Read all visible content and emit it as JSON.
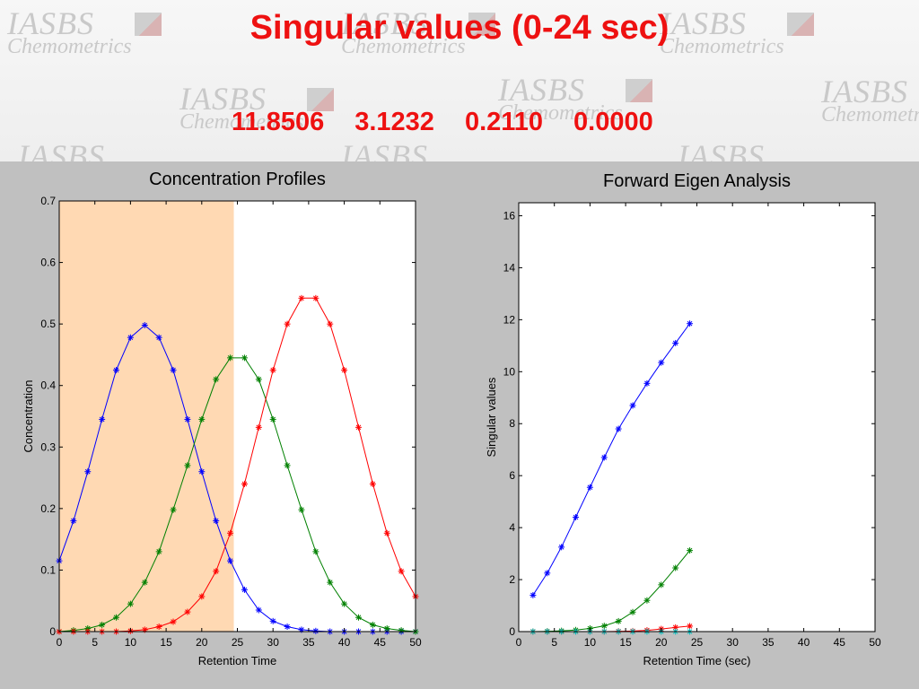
{
  "slide": {
    "title": "Singular values  (0-24 sec)",
    "values": [
      "11.8506",
      "3.1232",
      "0.2110",
      "0.0000"
    ],
    "watermark": {
      "line1": "IASBS",
      "line2": "Chemometrics"
    }
  },
  "chart_data": [
    {
      "type": "line",
      "title": "Concentration Profiles",
      "xlabel": "Retention Time",
      "ylabel": "Concentration",
      "xlim": [
        0,
        50
      ],
      "ylim": [
        0,
        0.7
      ],
      "xticks": [
        0,
        5,
        10,
        15,
        20,
        25,
        30,
        35,
        40,
        45,
        50
      ],
      "yticks": [
        0,
        0.1,
        0.2,
        0.3,
        0.4,
        0.5,
        0.6,
        0.7
      ],
      "highlight_window": [
        0,
        24.5
      ],
      "highlight_color": "#ffd9b3",
      "x": [
        0,
        2,
        4,
        6,
        8,
        10,
        12,
        14,
        16,
        18,
        20,
        22,
        24,
        26,
        28,
        30,
        32,
        34,
        36,
        38,
        40,
        42,
        44,
        46,
        48,
        50
      ],
      "series": [
        {
          "color": "#0000ff",
          "values": [
            0.115,
            0.18,
            0.26,
            0.345,
            0.425,
            0.478,
            0.498,
            0.478,
            0.425,
            0.345,
            0.26,
            0.18,
            0.115,
            0.068,
            0.035,
            0.017,
            0.008,
            0.003,
            0.001,
            0.0,
            0.0,
            0.0,
            0.0,
            0.0,
            0.0,
            0.0
          ]
        },
        {
          "color": "#008000",
          "values": [
            0.0,
            0.002,
            0.005,
            0.011,
            0.023,
            0.045,
            0.08,
            0.13,
            0.198,
            0.27,
            0.345,
            0.41,
            0.445,
            0.445,
            0.41,
            0.345,
            0.27,
            0.198,
            0.13,
            0.08,
            0.045,
            0.023,
            0.011,
            0.005,
            0.002,
            0.0
          ]
        },
        {
          "color": "#ff0000",
          "values": [
            0.0,
            0.0,
            0.0,
            0.0,
            0.0,
            0.001,
            0.003,
            0.008,
            0.016,
            0.032,
            0.057,
            0.098,
            0.16,
            0.24,
            0.332,
            0.425,
            0.5,
            0.542,
            0.542,
            0.5,
            0.425,
            0.332,
            0.24,
            0.16,
            0.098,
            0.057
          ]
        }
      ]
    },
    {
      "type": "line",
      "title": "Forward Eigen Analysis",
      "xlabel": "Retention Time (sec)",
      "ylabel": "Singular values",
      "xlim": [
        0,
        50
      ],
      "ylim": [
        0,
        16.5
      ],
      "xticks": [
        0,
        5,
        10,
        15,
        20,
        25,
        30,
        35,
        40,
        45,
        50
      ],
      "yticks": [
        0,
        2,
        4,
        6,
        8,
        10,
        12,
        14,
        16
      ],
      "x": [
        2,
        4,
        6,
        8,
        10,
        12,
        14,
        16,
        18,
        20,
        22,
        24
      ],
      "series": [
        {
          "color": "#0000ff",
          "values": [
            1.4,
            2.25,
            3.25,
            4.4,
            5.55,
            6.7,
            7.8,
            8.7,
            9.55,
            10.35,
            11.1,
            11.85
          ]
        },
        {
          "color": "#008000",
          "values": [
            0.0,
            0.01,
            0.03,
            0.06,
            0.12,
            0.22,
            0.4,
            0.75,
            1.2,
            1.8,
            2.45,
            3.12
          ]
        },
        {
          "color": "#ff0000",
          "values": [
            0.0,
            0.0,
            0.0,
            0.0,
            0.0,
            0.0,
            0.01,
            0.02,
            0.05,
            0.1,
            0.16,
            0.21
          ]
        },
        {
          "color": "#00bfbf",
          "values": [
            0.0,
            0.0,
            0.0,
            0.0,
            0.0,
            0.0,
            0.0,
            0.0,
            0.0,
            0.0,
            0.0,
            0.0
          ]
        }
      ]
    }
  ]
}
